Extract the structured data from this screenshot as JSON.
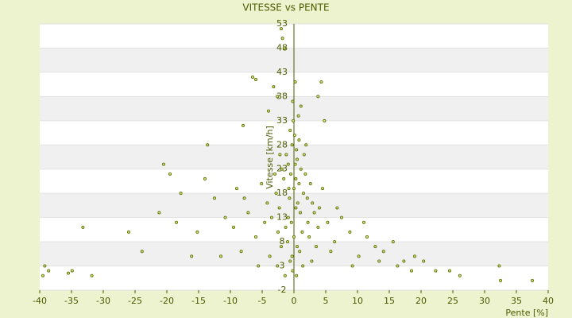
{
  "chart_data": {
    "type": "scatter",
    "title": "VITESSE vs PENTE",
    "x_label": "Pente [%]",
    "y_label": "Vitesse [km/h]",
    "xlim": [
      -40,
      40
    ],
    "xticks": [
      -40,
      -35,
      -30,
      -25,
      -20,
      -15,
      -10,
      -5,
      0,
      5,
      10,
      15,
      20,
      25,
      30,
      35,
      40
    ],
    "ylim": [
      -2,
      53
    ],
    "yticks": [
      -2,
      3,
      8,
      13,
      18,
      23,
      28,
      33,
      38,
      43,
      48,
      53
    ],
    "color": "#5a6a00",
    "grid": true,
    "x": [
      0.2,
      -0.5,
      0.8,
      -1.2,
      1.5,
      -0.3,
      0.5,
      -0.8,
      1.1,
      -1.6,
      2.1,
      -2.3,
      0.1,
      -0.1,
      0.4,
      1.8,
      -0.9,
      2.6,
      -2.8,
      3.2,
      -3.5,
      0.6,
      -0.4,
      1.3,
      -1.0,
      0.9,
      -0.6,
      2.4,
      -2.0,
      3.8,
      -4.2,
      4.5,
      -5.1,
      5.3,
      -6.0,
      6.4,
      -7.2,
      7.5,
      -8.3,
      8.8,
      -9.5,
      10.2,
      -10.8,
      11.5,
      -12.5,
      12.8,
      -13.6,
      14.1,
      -15.2,
      15.6,
      -16.1,
      17.3,
      -17.8,
      18.5,
      -19.5,
      20.4,
      -21.2,
      22.3,
      -23.9,
      24.5,
      -26.0,
      26.1,
      -31.8,
      32.3,
      -33.2,
      32.5,
      -34.9,
      37.5,
      -35.5,
      -39.2,
      -39.5,
      -38.6,
      -1.5,
      -2.0,
      -1.8,
      -6.5,
      -6.0,
      4.3,
      3.8,
      0.2,
      -3.2,
      -2.6,
      1.1,
      -4.0,
      4.8,
      -8.0,
      0.7,
      -0.2,
      0.3,
      -0.7,
      1.0,
      -1.3,
      1.6,
      -1.9,
      2.2,
      -2.5,
      2.9,
      -3.0,
      3.5,
      -3.8,
      4.0,
      -4.6,
      0.0,
      0.0,
      -0.2,
      0.4,
      1.4,
      -1.4,
      2.8,
      -2.6,
      5.8,
      -5.6,
      6.8,
      -7.8,
      9.2,
      -9.0,
      11.0,
      -11.5,
      13.4,
      -14.0,
      16.3,
      -18.5,
      19.0,
      -20.5,
      0.8,
      -0.6,
      0.3,
      -0.9,
      1.9,
      -2.2,
      0.5,
      -0.3
    ],
    "values": [
      24,
      22,
      20,
      26,
      18,
      28,
      25,
      19,
      23,
      21,
      17,
      15,
      30,
      33,
      27,
      22,
      24,
      20,
      18,
      14,
      13,
      16,
      12,
      10,
      8,
      6,
      4,
      9,
      7,
      11,
      16,
      19,
      20,
      12,
      9,
      8,
      14,
      13,
      6,
      10,
      11,
      5,
      13,
      9,
      17,
      7,
      28,
      6,
      10,
      8,
      5,
      4,
      18,
      2,
      22,
      4,
      14,
      2,
      6,
      2,
      10,
      1,
      1,
      3,
      11,
      0,
      2,
      0,
      1.5,
      3,
      1,
      2,
      48,
      52,
      50,
      42,
      41.5,
      41,
      38,
      41,
      40,
      38,
      36,
      35,
      33,
      32,
      34,
      37,
      21,
      17,
      14,
      11,
      26,
      23,
      12,
      10,
      16,
      22,
      7,
      5,
      15,
      12,
      19,
      9,
      2,
      1,
      3,
      1,
      4,
      3,
      6,
      3,
      15,
      17,
      3,
      19,
      12,
      5,
      4,
      21,
      3,
      12,
      5,
      24,
      29,
      31,
      15,
      13,
      28,
      26,
      7,
      5
    ]
  }
}
